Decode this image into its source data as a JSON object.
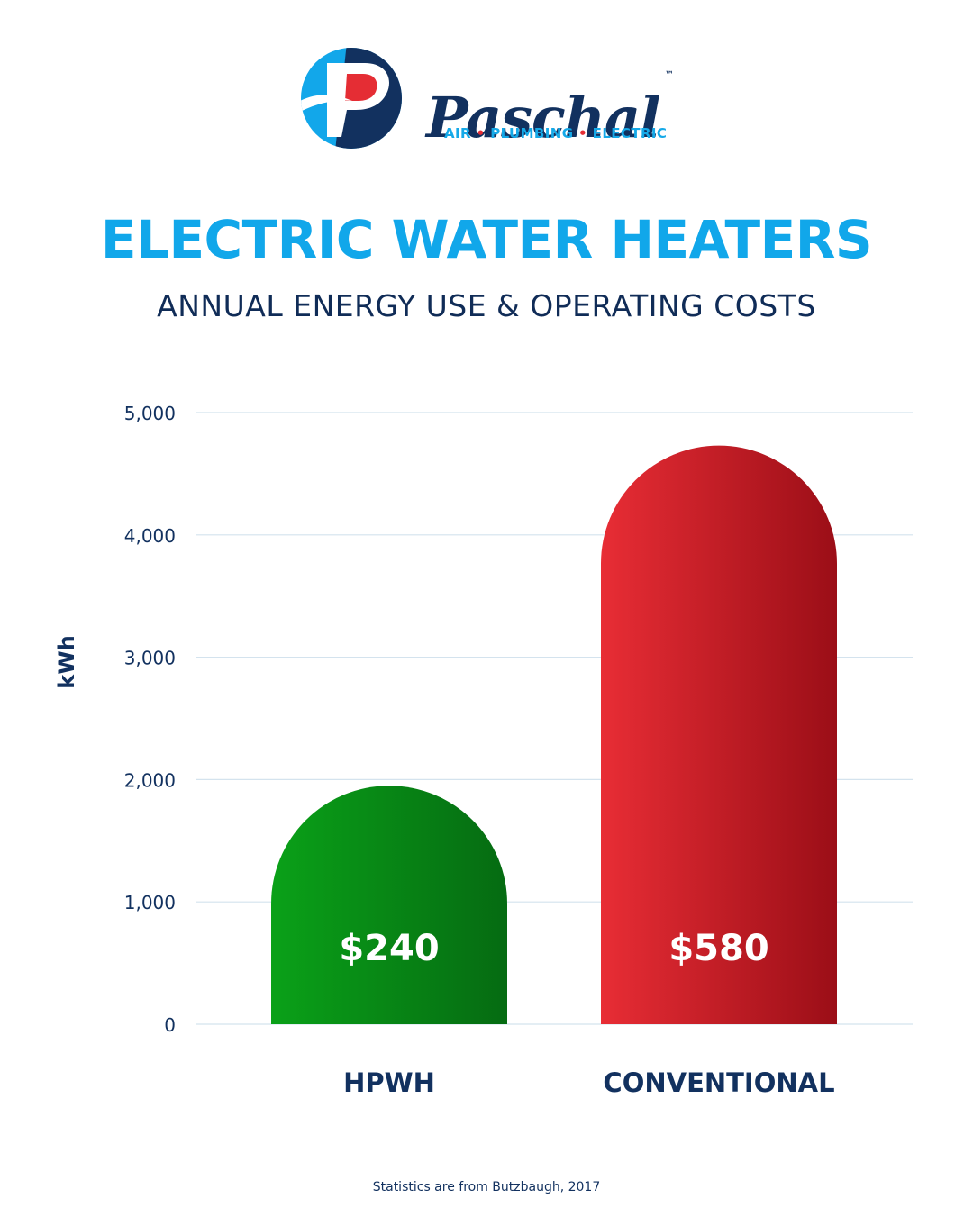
{
  "brand": {
    "name": "Paschal",
    "trademark": "™",
    "tagline": [
      "AIR",
      "PLUMBING",
      "ELECTRIC"
    ],
    "tagline_separator": "•"
  },
  "header": {
    "title": "ELECTRIC WATER HEATERS",
    "subtitle": "ANNUAL ENERGY USE & OPERATING COSTS"
  },
  "chart_data": {
    "type": "bar",
    "title": "ELECTRIC WATER HEATERS",
    "subtitle": "ANNUAL ENERGY USE & OPERATING COSTS",
    "xlabel": "",
    "ylabel": "kWh",
    "ylim": [
      0,
      5000
    ],
    "yticks": [
      "0",
      "1,000",
      "2,000",
      "3,000",
      "4,000",
      "5,000"
    ],
    "grid": true,
    "categories": [
      "HPWH",
      "CONVENTIONAL"
    ],
    "values": [
      1950,
      4730
    ],
    "cost_labels": [
      "$240",
      "$580"
    ],
    "colors": {
      "HPWH": [
        "#0aa118",
        "#056b12"
      ],
      "CONVENTIONAL": [
        "#e82d35",
        "#9b0e17"
      ]
    },
    "axis_color": "#12315f",
    "grid_color": "#d4e3ee"
  },
  "footer": {
    "source": "Statistics are from Butzbaugh, 2017"
  }
}
